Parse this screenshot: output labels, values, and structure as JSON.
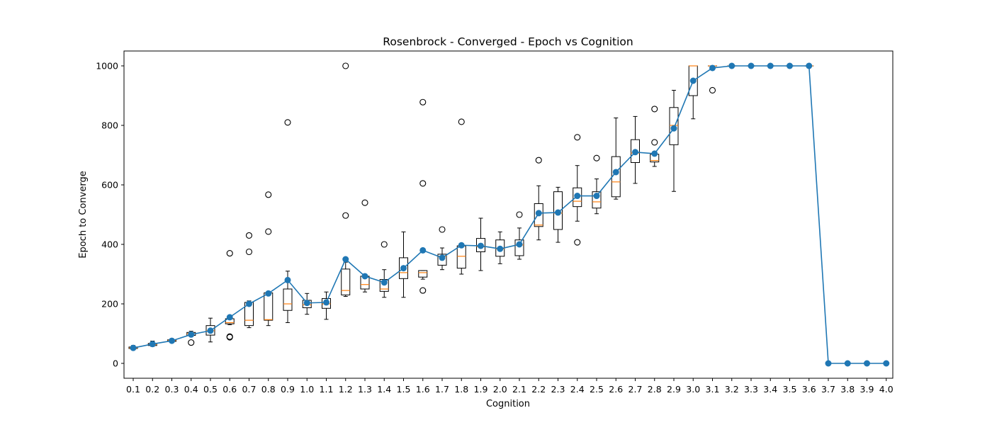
{
  "chart_data": {
    "type": "box",
    "title": "Rosenbrock - Converged - Epoch vs Cognition",
    "xlabel": "Cognition",
    "ylabel": "Epoch to Converge",
    "ylim": [
      -50,
      1050
    ],
    "yticks": [
      0,
      200,
      400,
      600,
      800,
      1000
    ],
    "categories": [
      "0.1",
      "0.2",
      "0.3",
      "0.4",
      "0.5",
      "0.6",
      "0.7",
      "0.8",
      "0.9",
      "1.0",
      "1.1",
      "1.2",
      "1.3",
      "1.4",
      "1.5",
      "1.6",
      "1.7",
      "1.8",
      "1.9",
      "2.0",
      "2.1",
      "2.2",
      "2.3",
      "2.4",
      "2.5",
      "2.6",
      "2.7",
      "2.8",
      "2.9",
      "3.0",
      "3.1",
      "3.2",
      "3.3",
      "3.4",
      "3.5",
      "3.6",
      "3.7",
      "3.8",
      "3.9",
      "4.0"
    ],
    "grid": false,
    "colors": {
      "box": "#000000",
      "median": "#ff7f0e",
      "mean_line": "#1f77b4"
    },
    "boxes": [
      {
        "x": "0.1",
        "whislo": 47,
        "q1": 50,
        "med": 52,
        "q3": 55,
        "whishi": 60,
        "fliers": []
      },
      {
        "x": "0.2",
        "whislo": 57,
        "q1": 60,
        "med": 63,
        "q3": 67,
        "whishi": 75,
        "fliers": []
      },
      {
        "x": "0.3",
        "whislo": 70,
        "q1": 74,
        "med": 77,
        "q3": 79,
        "whishi": 82,
        "fliers": []
      },
      {
        "x": "0.4",
        "whislo": 92,
        "q1": 94,
        "med": 100,
        "q3": 104,
        "whishi": 108,
        "fliers": [
          70
        ]
      },
      {
        "x": "0.5",
        "whislo": 72,
        "q1": 95,
        "med": 110,
        "q3": 127,
        "whishi": 152,
        "fliers": []
      },
      {
        "x": "0.6",
        "whislo": 130,
        "q1": 133,
        "med": 137,
        "q3": 150,
        "whishi": 160,
        "fliers": [
          88,
          90,
          370
        ]
      },
      {
        "x": "0.7",
        "whislo": 120,
        "q1": 127,
        "med": 145,
        "q3": 205,
        "whishi": 210,
        "fliers": [
          375,
          430
        ]
      },
      {
        "x": "0.8",
        "whislo": 127,
        "q1": 145,
        "med": 147,
        "q3": 237,
        "whishi": 237,
        "fliers": [
          443,
          567
        ]
      },
      {
        "x": "0.9",
        "whislo": 137,
        "q1": 178,
        "med": 200,
        "q3": 250,
        "whishi": 310,
        "fliers": [
          810
        ]
      },
      {
        "x": "1.0",
        "whislo": 165,
        "q1": 187,
        "med": 197,
        "q3": 212,
        "whishi": 235,
        "fliers": []
      },
      {
        "x": "1.1",
        "whislo": 148,
        "q1": 185,
        "med": 200,
        "q3": 218,
        "whishi": 240,
        "fliers": []
      },
      {
        "x": "1.2",
        "whislo": 225,
        "q1": 230,
        "med": 245,
        "q3": 317,
        "whishi": 340,
        "fliers": [
          497,
          1000
        ]
      },
      {
        "x": "1.3",
        "whislo": 240,
        "q1": 250,
        "med": 265,
        "q3": 293,
        "whishi": 300,
        "fliers": [
          540
        ]
      },
      {
        "x": "1.4",
        "whislo": 222,
        "q1": 242,
        "med": 250,
        "q3": 282,
        "whishi": 315,
        "fliers": [
          400
        ]
      },
      {
        "x": "1.5",
        "whislo": 222,
        "q1": 285,
        "med": 305,
        "q3": 355,
        "whishi": 442,
        "fliers": []
      },
      {
        "x": "1.6",
        "whislo": 283,
        "q1": 290,
        "med": 305,
        "q3": 312,
        "whishi": 312,
        "fliers": [
          245,
          605,
          878
        ]
      },
      {
        "x": "1.7",
        "whislo": 315,
        "q1": 330,
        "med": 360,
        "q3": 367,
        "whishi": 388,
        "fliers": [
          450
        ]
      },
      {
        "x": "1.8",
        "whislo": 300,
        "q1": 320,
        "med": 360,
        "q3": 395,
        "whishi": 398,
        "fliers": [
          812
        ]
      },
      {
        "x": "1.9",
        "whislo": 312,
        "q1": 375,
        "med": 392,
        "q3": 420,
        "whishi": 488,
        "fliers": []
      },
      {
        "x": "2.0",
        "whislo": 335,
        "q1": 360,
        "med": 385,
        "q3": 415,
        "whishi": 442,
        "fliers": []
      },
      {
        "x": "2.1",
        "whislo": 350,
        "q1": 362,
        "med": 398,
        "q3": 415,
        "whishi": 455,
        "fliers": [
          500
        ]
      },
      {
        "x": "2.2",
        "whislo": 415,
        "q1": 460,
        "med": 465,
        "q3": 537,
        "whishi": 597,
        "fliers": [
          683
        ]
      },
      {
        "x": "2.3",
        "whislo": 407,
        "q1": 450,
        "med": 505,
        "q3": 577,
        "whishi": 592,
        "fliers": []
      },
      {
        "x": "2.4",
        "whislo": 478,
        "q1": 527,
        "med": 545,
        "q3": 590,
        "whishi": 665,
        "fliers": [
          407,
          760
        ]
      },
      {
        "x": "2.5",
        "whislo": 503,
        "q1": 522,
        "med": 543,
        "q3": 577,
        "whishi": 620,
        "fliers": [
          690
        ]
      },
      {
        "x": "2.6",
        "whislo": 552,
        "q1": 560,
        "med": 610,
        "q3": 695,
        "whishi": 825,
        "fliers": []
      },
      {
        "x": "2.7",
        "whislo": 605,
        "q1": 675,
        "med": 707,
        "q3": 752,
        "whishi": 830,
        "fliers": []
      },
      {
        "x": "2.8",
        "whislo": 662,
        "q1": 677,
        "med": 682,
        "q3": 703,
        "whishi": 703,
        "fliers": [
          743,
          855
        ]
      },
      {
        "x": "2.9",
        "whislo": 578,
        "q1": 735,
        "med": 800,
        "q3": 860,
        "whishi": 918,
        "fliers": []
      },
      {
        "x": "3.0",
        "whislo": 822,
        "q1": 900,
        "med": 1000,
        "q3": 1000,
        "whishi": 1000,
        "fliers": []
      },
      {
        "x": "3.1",
        "whislo": 1000,
        "q1": 1000,
        "med": 1000,
        "q3": 1000,
        "whishi": 1000,
        "fliers": [
          918
        ]
      },
      {
        "x": "3.2",
        "whislo": 1000,
        "q1": 1000,
        "med": 1000,
        "q3": 1000,
        "whishi": 1000,
        "fliers": []
      },
      {
        "x": "3.3",
        "whislo": 1000,
        "q1": 1000,
        "med": 1000,
        "q3": 1000,
        "whishi": 1000,
        "fliers": []
      },
      {
        "x": "3.4",
        "whislo": 1000,
        "q1": 1000,
        "med": 1000,
        "q3": 1000,
        "whishi": 1000,
        "fliers": []
      },
      {
        "x": "3.5",
        "whislo": 1000,
        "q1": 1000,
        "med": 1000,
        "q3": 1000,
        "whishi": 1000,
        "fliers": []
      },
      {
        "x": "3.6",
        "whislo": 1000,
        "q1": 1000,
        "med": 1000,
        "q3": 1000,
        "whishi": 1000,
        "fliers": []
      }
    ],
    "mean_series": {
      "marker": "circle",
      "x": [
        "0.1",
        "0.2",
        "0.3",
        "0.4",
        "0.5",
        "0.6",
        "0.7",
        "0.8",
        "0.9",
        "1.0",
        "1.1",
        "1.2",
        "1.3",
        "1.4",
        "1.5",
        "1.6",
        "1.7",
        "1.8",
        "1.9",
        "2.0",
        "2.1",
        "2.2",
        "2.3",
        "2.4",
        "2.5",
        "2.6",
        "2.7",
        "2.8",
        "2.9",
        "3.0",
        "3.1",
        "3.2",
        "3.3",
        "3.4",
        "3.5",
        "3.6",
        "3.7",
        "3.8",
        "3.9",
        "4.0"
      ],
      "values": [
        52,
        65,
        76,
        97,
        110,
        155,
        200,
        235,
        280,
        203,
        205,
        350,
        293,
        272,
        320,
        380,
        355,
        397,
        395,
        385,
        400,
        505,
        507,
        563,
        563,
        643,
        710,
        705,
        790,
        950,
        993,
        1000,
        1000,
        1000,
        1000,
        1000,
        0,
        0,
        0,
        0
      ]
    }
  }
}
